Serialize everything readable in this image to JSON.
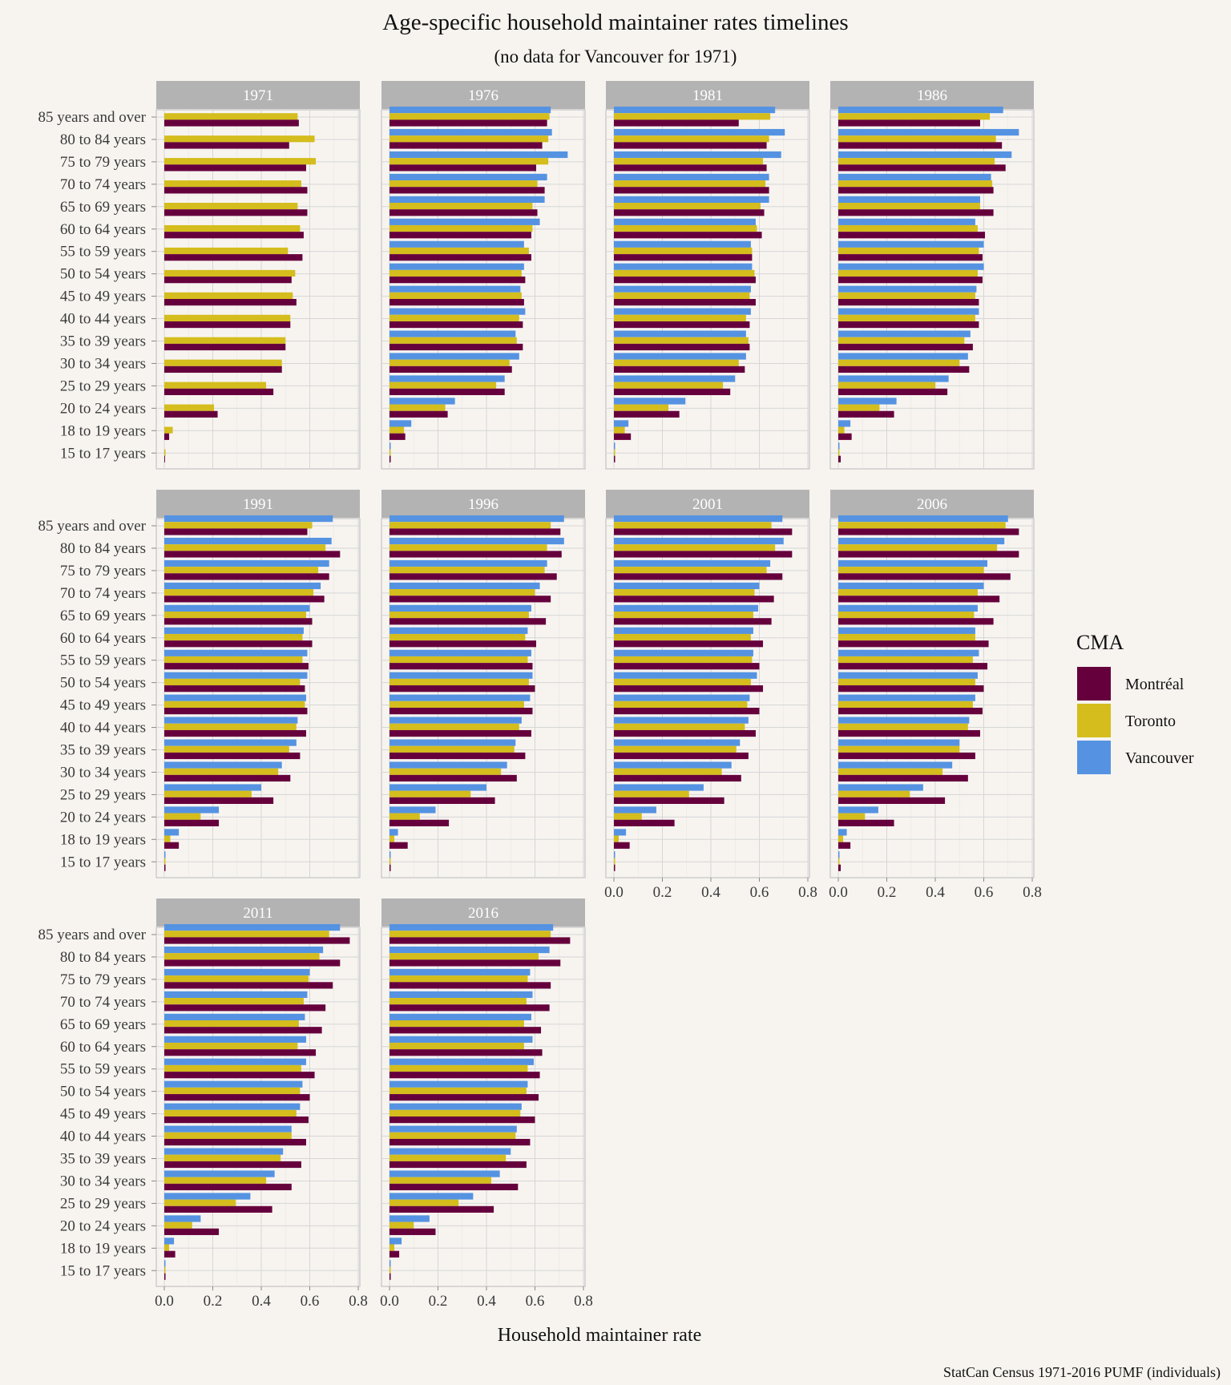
{
  "chart_data": {
    "type": "bar",
    "title": "Age-specific household maintainer rates timelines",
    "subtitle": "(no data for Vancouver for 1971)",
    "xlabel": "Household maintainer rate",
    "ylabel": "",
    "caption": "StatCan Census 1971-2016 PUMF (individuals)",
    "xlim": [
      0,
      0.8
    ],
    "x_ticks": [
      "0.0",
      "0.2",
      "0.4",
      "0.6",
      "0.8"
    ],
    "orientation": "horizontal",
    "grid": true,
    "legend": {
      "title": "CMA",
      "position": "right",
      "items": [
        {
          "name": "Montréal",
          "color": "#66003d"
        },
        {
          "name": "Toronto",
          "color": "#d4bd1c"
        },
        {
          "name": "Vancouver",
          "color": "#5593e2"
        }
      ]
    },
    "categories": [
      "85 years and over",
      "80 to 84 years",
      "75 to 79 years",
      "70 to 74 years",
      "65 to 69 years",
      "60 to 64 years",
      "55 to 59 years",
      "50 to 54 years",
      "45 to 49 years",
      "40 to 44 years",
      "35 to 39 years",
      "30 to 34 years",
      "25 to 29 years",
      "20 to 24 years",
      "18 to 19 years",
      "15 to 17 years"
    ],
    "panels": [
      {
        "year": "1971",
        "series": [
          {
            "name": "Vancouver",
            "values": null
          },
          {
            "name": "Toronto",
            "values": [
              0.55,
              0.62,
              0.625,
              0.565,
              0.55,
              0.56,
              0.51,
              0.54,
              0.53,
              0.52,
              0.5,
              0.485,
              0.42,
              0.205,
              0.035,
              0.005
            ]
          },
          {
            "name": "Montréal",
            "values": [
              0.555,
              0.515,
              0.585,
              0.59,
              0.59,
              0.575,
              0.57,
              0.525,
              0.545,
              0.52,
              0.5,
              0.485,
              0.45,
              0.22,
              0.02,
              0.003
            ]
          }
        ]
      },
      {
        "year": "1976",
        "series": [
          {
            "name": "Vancouver",
            "values": [
              0.665,
              0.67,
              0.735,
              0.65,
              0.64,
              0.62,
              0.555,
              0.555,
              0.54,
              0.56,
              0.52,
              0.535,
              0.475,
              0.27,
              0.09,
              0.005
            ]
          },
          {
            "name": "Toronto",
            "values": [
              0.66,
              0.655,
              0.655,
              0.61,
              0.59,
              0.59,
              0.575,
              0.545,
              0.545,
              0.535,
              0.525,
              0.495,
              0.44,
              0.23,
              0.06,
              0.005
            ]
          },
          {
            "name": "Montréal",
            "values": [
              0.65,
              0.63,
              0.605,
              0.64,
              0.61,
              0.585,
              0.585,
              0.56,
              0.555,
              0.55,
              0.55,
              0.505,
              0.475,
              0.24,
              0.065,
              0.005
            ]
          }
        ]
      },
      {
        "year": "1981",
        "series": [
          {
            "name": "Vancouver",
            "values": [
              0.665,
              0.705,
              0.69,
              0.64,
              0.64,
              0.585,
              0.565,
              0.57,
              0.565,
              0.565,
              0.545,
              0.545,
              0.5,
              0.295,
              0.06,
              0.005
            ]
          },
          {
            "name": "Toronto",
            "values": [
              0.645,
              0.64,
              0.615,
              0.625,
              0.605,
              0.59,
              0.57,
              0.58,
              0.56,
              0.545,
              0.555,
              0.515,
              0.45,
              0.225,
              0.045,
              0.005
            ]
          },
          {
            "name": "Montréal",
            "values": [
              0.515,
              0.63,
              0.63,
              0.64,
              0.62,
              0.61,
              0.57,
              0.585,
              0.585,
              0.56,
              0.56,
              0.54,
              0.48,
              0.27,
              0.07,
              0.005
            ]
          }
        ]
      },
      {
        "year": "1986",
        "series": [
          {
            "name": "Vancouver",
            "values": [
              0.68,
              0.745,
              0.715,
              0.63,
              0.585,
              0.565,
              0.6,
              0.6,
              0.57,
              0.58,
              0.545,
              0.535,
              0.455,
              0.24,
              0.05,
              0.005
            ]
          },
          {
            "name": "Toronto",
            "values": [
              0.625,
              0.65,
              0.645,
              0.635,
              0.585,
              0.575,
              0.58,
              0.575,
              0.565,
              0.565,
              0.52,
              0.5,
              0.4,
              0.17,
              0.025,
              0.005
            ]
          },
          {
            "name": "Montréal",
            "values": [
              0.585,
              0.675,
              0.69,
              0.64,
              0.64,
              0.605,
              0.595,
              0.595,
              0.58,
              0.58,
              0.555,
              0.54,
              0.45,
              0.23,
              0.055,
              0.01
            ]
          }
        ]
      },
      {
        "year": "1991",
        "series": [
          {
            "name": "Vancouver",
            "values": [
              0.695,
              0.69,
              0.68,
              0.645,
              0.6,
              0.575,
              0.59,
              0.59,
              0.585,
              0.55,
              0.545,
              0.485,
              0.4,
              0.225,
              0.06,
              0.005
            ]
          },
          {
            "name": "Toronto",
            "values": [
              0.61,
              0.665,
              0.635,
              0.615,
              0.585,
              0.57,
              0.57,
              0.56,
              0.58,
              0.545,
              0.515,
              0.47,
              0.36,
              0.15,
              0.025,
              0.005
            ]
          },
          {
            "name": "Montréal",
            "values": [
              0.59,
              0.725,
              0.68,
              0.66,
              0.61,
              0.61,
              0.595,
              0.58,
              0.59,
              0.585,
              0.56,
              0.52,
              0.45,
              0.225,
              0.06,
              0.005
            ]
          }
        ]
      },
      {
        "year": "1996",
        "series": [
          {
            "name": "Vancouver",
            "values": [
              0.72,
              0.72,
              0.65,
              0.62,
              0.585,
              0.57,
              0.585,
              0.59,
              0.58,
              0.545,
              0.52,
              0.485,
              0.4,
              0.19,
              0.035,
              0.005
            ]
          },
          {
            "name": "Toronto",
            "values": [
              0.665,
              0.65,
              0.64,
              0.6,
              0.575,
              0.56,
              0.57,
              0.575,
              0.555,
              0.535,
              0.515,
              0.46,
              0.335,
              0.125,
              0.02,
              0.005
            ]
          },
          {
            "name": "Montréal",
            "values": [
              0.705,
              0.71,
              0.69,
              0.665,
              0.645,
              0.605,
              0.59,
              0.6,
              0.59,
              0.585,
              0.56,
              0.525,
              0.435,
              0.245,
              0.075,
              0.005
            ]
          }
        ]
      },
      {
        "year": "2001",
        "series": [
          {
            "name": "Vancouver",
            "values": [
              0.695,
              0.7,
              0.645,
              0.6,
              0.595,
              0.575,
              0.575,
              0.59,
              0.56,
              0.555,
              0.52,
              0.485,
              0.37,
              0.175,
              0.05,
              0.005
            ]
          },
          {
            "name": "Toronto",
            "values": [
              0.65,
              0.665,
              0.63,
              0.58,
              0.575,
              0.565,
              0.57,
              0.565,
              0.55,
              0.54,
              0.505,
              0.445,
              0.31,
              0.115,
              0.02,
              0.005
            ]
          },
          {
            "name": "Montréal",
            "values": [
              0.735,
              0.735,
              0.695,
              0.66,
              0.65,
              0.615,
              0.6,
              0.615,
              0.6,
              0.585,
              0.555,
              0.525,
              0.455,
              0.25,
              0.065,
              0.005
            ]
          }
        ]
      },
      {
        "year": "2006",
        "series": [
          {
            "name": "Vancouver",
            "values": [
              0.7,
              0.685,
              0.615,
              0.6,
              0.575,
              0.565,
              0.58,
              0.575,
              0.565,
              0.54,
              0.5,
              0.47,
              0.35,
              0.165,
              0.035,
              0.005
            ]
          },
          {
            "name": "Toronto",
            "values": [
              0.69,
              0.655,
              0.6,
              0.575,
              0.56,
              0.565,
              0.555,
              0.565,
              0.555,
              0.535,
              0.5,
              0.43,
              0.295,
              0.11,
              0.02,
              0.005
            ]
          },
          {
            "name": "Montréal",
            "values": [
              0.745,
              0.745,
              0.71,
              0.665,
              0.64,
              0.62,
              0.615,
              0.6,
              0.595,
              0.585,
              0.565,
              0.535,
              0.44,
              0.23,
              0.05,
              0.01
            ]
          }
        ]
      },
      {
        "year": "2011",
        "series": [
          {
            "name": "Vancouver",
            "values": [
              0.725,
              0.655,
              0.6,
              0.59,
              0.58,
              0.585,
              0.585,
              0.57,
              0.56,
              0.525,
              0.49,
              0.455,
              0.355,
              0.15,
              0.04,
              0.005
            ]
          },
          {
            "name": "Toronto",
            "values": [
              0.68,
              0.64,
              0.595,
              0.575,
              0.555,
              0.55,
              0.565,
              0.56,
              0.545,
              0.525,
              0.48,
              0.42,
              0.295,
              0.115,
              0.02,
              0.005
            ]
          },
          {
            "name": "Montréal",
            "values": [
              0.765,
              0.725,
              0.695,
              0.665,
              0.65,
              0.625,
              0.62,
              0.6,
              0.595,
              0.585,
              0.565,
              0.525,
              0.445,
              0.225,
              0.045,
              0.005
            ]
          }
        ]
      },
      {
        "year": "2016",
        "series": [
          {
            "name": "Vancouver",
            "values": [
              0.675,
              0.66,
              0.58,
              0.59,
              0.585,
              0.59,
              0.595,
              0.57,
              0.545,
              0.525,
              0.5,
              0.455,
              0.345,
              0.165,
              0.05,
              0.005
            ]
          },
          {
            "name": "Toronto",
            "values": [
              0.665,
              0.615,
              0.57,
              0.565,
              0.555,
              0.555,
              0.57,
              0.565,
              0.54,
              0.52,
              0.48,
              0.42,
              0.285,
              0.1,
              0.02,
              0.005
            ]
          },
          {
            "name": "Montréal",
            "values": [
              0.745,
              0.705,
              0.665,
              0.66,
              0.625,
              0.63,
              0.62,
              0.615,
              0.6,
              0.58,
              0.565,
              0.53,
              0.43,
              0.19,
              0.04,
              0.005
            ]
          }
        ]
      }
    ]
  }
}
